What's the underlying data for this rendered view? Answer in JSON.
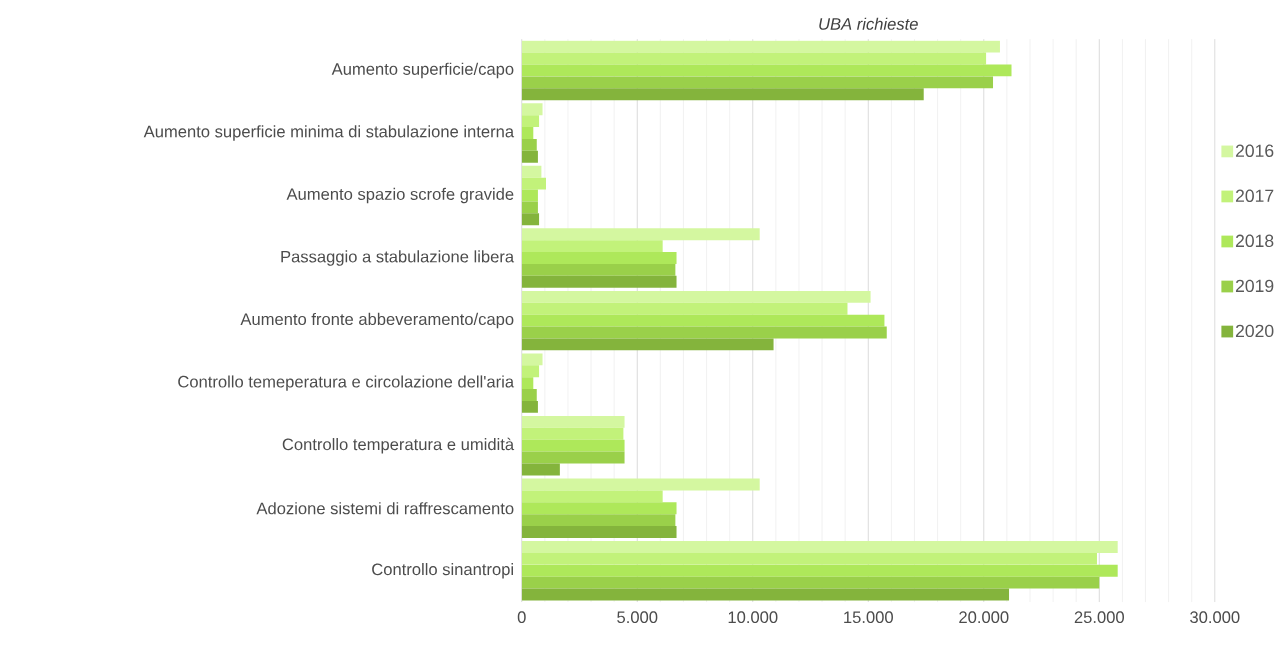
{
  "chart_data": {
    "type": "bar",
    "orientation": "horizontal",
    "title": "UBA richieste",
    "categories": [
      "Aumento superficie/capo",
      "Aumento superficie minima di stabulazione interna",
      "Aumento spazio scrofe gravide",
      "Passaggio a stabulazione libera",
      "Aumento fronte abbeveramento/capo",
      "Controllo temeperatura e circolazione dell'aria",
      "Controllo temperatura e umidità",
      "Adozione sistemi di raffrescamento",
      "Controllo sinantropi"
    ],
    "series": [
      {
        "name": "2016",
        "color": "#d4f7a0",
        "values": [
          20700,
          900,
          850,
          10300,
          15100,
          900,
          4450,
          10300,
          25800
        ]
      },
      {
        "name": "2017",
        "color": "#c2f27a",
        "values": [
          20100,
          750,
          1050,
          6100,
          14100,
          750,
          4400,
          6100,
          24900
        ]
      },
      {
        "name": "2018",
        "color": "#aee85a",
        "values": [
          21200,
          500,
          700,
          6700,
          15700,
          500,
          4450,
          6700,
          25800
        ]
      },
      {
        "name": "2019",
        "color": "#9ad04a",
        "values": [
          20400,
          650,
          700,
          6650,
          15800,
          650,
          4450,
          6650,
          25000
        ]
      },
      {
        "name": "2020",
        "color": "#84b43c",
        "values": [
          17400,
          700,
          750,
          6700,
          10900,
          700,
          1650,
          6700,
          21100
        ]
      }
    ],
    "xlim": [
      0,
      30000
    ],
    "xticks": [
      0,
      {
        "value": 5000,
        "label": "5.000"
      },
      {
        "value": 10000,
        "label": "10.000"
      },
      {
        "value": 15000,
        "label": "15.000"
      },
      {
        "value": 20000,
        "label": "20.000"
      },
      {
        "value": 25000,
        "label": "25.000"
      },
      {
        "value": 30000,
        "label": "30.000"
      }
    ],
    "grid": "x",
    "legend": "right"
  }
}
